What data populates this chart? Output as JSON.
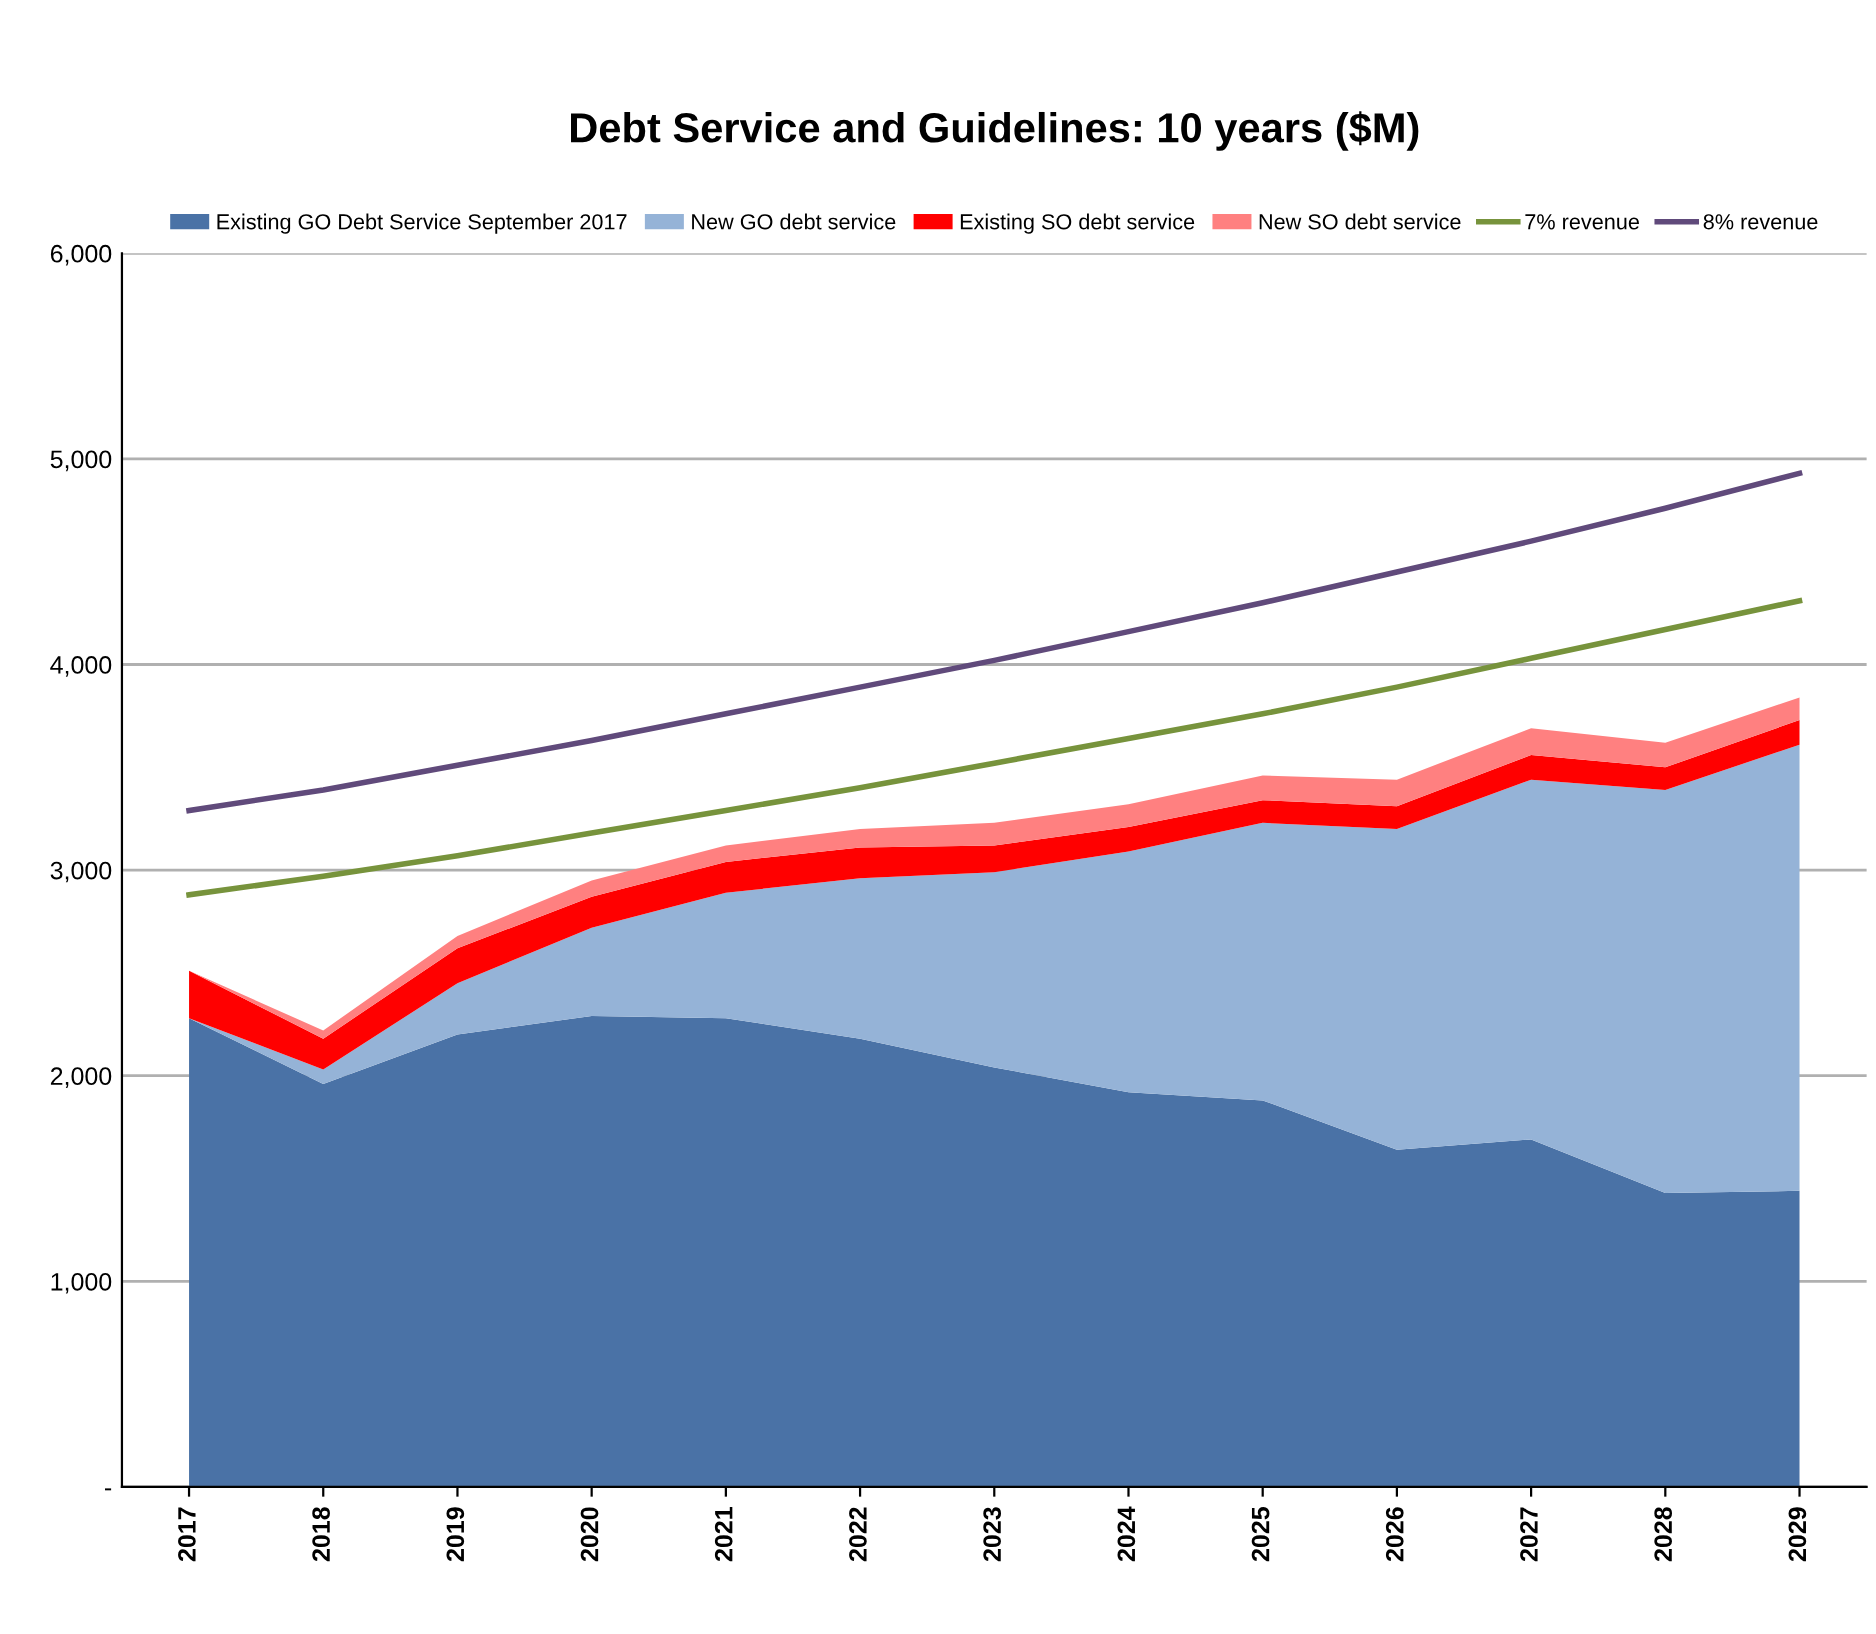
{
  "chart_data": {
    "type": "area",
    "title": "Debt Service and Guidelines: 10 years ($M)",
    "categories": [
      "2017",
      "2018",
      "2019",
      "2020",
      "2021",
      "2022",
      "2023",
      "2024",
      "2025",
      "2026",
      "2027",
      "2028",
      "2029"
    ],
    "stacked": true,
    "series": [
      {
        "name": "Existing GO Debt Service September 2017",
        "color": "#4a72a6",
        "values": [
          2280,
          1960,
          2200,
          2290,
          2280,
          2180,
          2040,
          1920,
          1880,
          1640,
          1690,
          1430,
          1440
        ]
      },
      {
        "name": "New GO debt service",
        "color": "#95b3d7",
        "values": [
          0,
          70,
          250,
          430,
          610,
          780,
          950,
          1170,
          1350,
          1560,
          1750,
          1960,
          2170
        ]
      },
      {
        "name": "Existing SO debt service",
        "color": "#ff0000",
        "values": [
          230,
          150,
          170,
          150,
          150,
          150,
          130,
          120,
          110,
          110,
          120,
          110,
          120
        ]
      },
      {
        "name": "New SO debt service",
        "color": "#ff8080",
        "values": [
          0,
          40,
          60,
          80,
          80,
          90,
          110,
          110,
          120,
          130,
          130,
          120,
          110
        ]
      },
      {
        "name": "7% revenue",
        "type": "line",
        "color": "#77933c",
        "values": [
          2880,
          2970,
          3070,
          3180,
          3290,
          3400,
          3520,
          3640,
          3760,
          3890,
          4030,
          4170,
          4310
        ]
      },
      {
        "name": "8% revenue",
        "type": "line",
        "color": "#604a7b",
        "values": [
          3290,
          3390,
          3510,
          3630,
          3760,
          3890,
          4020,
          4160,
          4300,
          4450,
          4600,
          4760,
          4930
        ]
      }
    ],
    "ylim": [
      0,
      6000
    ],
    "yticks": [
      {
        "value": 0,
        "label": "-"
      },
      {
        "value": 1000,
        "label": "1,000"
      },
      {
        "value": 2000,
        "label": "2,000"
      },
      {
        "value": 3000,
        "label": "3,000"
      },
      {
        "value": 4000,
        "label": "4,000"
      },
      {
        "value": 5000,
        "label": "5,000"
      },
      {
        "value": 6000,
        "label": "6,000"
      }
    ],
    "grid": "y",
    "legend": "top"
  }
}
